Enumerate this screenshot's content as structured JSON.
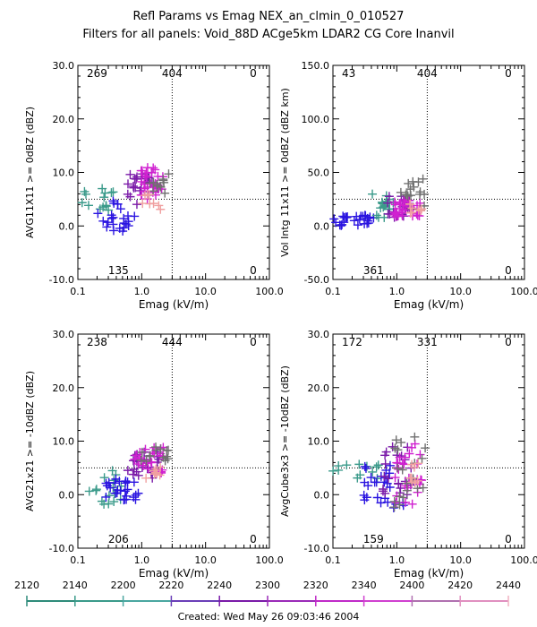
{
  "header": {
    "title": "Refl Params vs Emag    NEX_an_clmin_0_010527",
    "subtitle": "Filters for all panels:  Void_88D ACge5km LDAR2 CG Core Inanvil"
  },
  "footer": {
    "created": "Created: Wed May 26 09:03:46 2004"
  },
  "colors": {
    "teal": "#3a9a8a",
    "blue": "#2a14e0",
    "purple": "#7a1aa8",
    "magenta": "#d020d0",
    "gray": "#707070",
    "pink": "#f0a0a0"
  },
  "colorbar": {
    "labels": [
      "2120",
      "2140",
      "2200",
      "2220",
      "2240",
      "2300",
      "2320",
      "2340",
      "2400",
      "2420",
      "2440"
    ],
    "colors": [
      "#2e8b7a",
      "#3a9a8a",
      "#4aa6a0",
      "#6a3fb8",
      "#7a1aa8",
      "#9a2ab8",
      "#c02ac8",
      "#d040d0",
      "#b070b0",
      "#e090c0",
      "#f0b0c0"
    ]
  },
  "chart_data": [
    {
      "type": "scatter",
      "panel": "top-left",
      "xlabel": "Emag (kV/m)",
      "ylabel": "AVG11X11 >= 0dBZ (dBZ)",
      "xscale": "log",
      "xlim": [
        0.1,
        100.0
      ],
      "ylim": [
        -10.0,
        30.0
      ],
      "xticks": [
        "0.1",
        "1.0",
        "10.0",
        "100.0"
      ],
      "yticks": [
        "-10.0",
        "0.0",
        "10.0",
        "20.0",
        "30.0"
      ],
      "threshold_x": 3.0,
      "threshold_y": 5.0,
      "counts": {
        "ul": "269",
        "uc": "404",
        "ur": "0",
        "lc": "135",
        "lr": "0"
      },
      "clusters": [
        {
          "color": "teal",
          "x": [
            0.1,
            0.4
          ],
          "y": [
            2.0,
            7.0
          ],
          "n": 14
        },
        {
          "color": "blue",
          "x": [
            0.2,
            0.8
          ],
          "y": [
            -1.0,
            5.0
          ],
          "n": 24
        },
        {
          "color": "purple",
          "x": [
            0.6,
            1.8
          ],
          "y": [
            4.0,
            10.0
          ],
          "n": 26
        },
        {
          "color": "magenta",
          "x": [
            0.9,
            2.2
          ],
          "y": [
            5.0,
            11.0
          ],
          "n": 28
        },
        {
          "color": "gray",
          "x": [
            1.2,
            2.8
          ],
          "y": [
            6.0,
            10.0
          ],
          "n": 12
        },
        {
          "color": "pink",
          "x": [
            1.0,
            2.0
          ],
          "y": [
            3.0,
            6.0
          ],
          "n": 8
        }
      ]
    },
    {
      "type": "scatter",
      "panel": "top-right",
      "xlabel": "Emag (kV/m)",
      "ylabel": "Vol Intg 11x11 >= 0dBZ (dBZ km)",
      "xscale": "log",
      "xlim": [
        0.1,
        100.0
      ],
      "ylim": [
        -50.0,
        150.0
      ],
      "xticks": [
        "0.1",
        "1.0",
        "10.0",
        "100.0"
      ],
      "yticks": [
        "-50.0",
        "0.0",
        "50.0",
        "100.0",
        "150.0"
      ],
      "threshold_x": 3.0,
      "threshold_y": 25.0,
      "counts": {
        "ul": "43",
        "uc": "404",
        "ur": "0",
        "lc": "361",
        "lr": "0"
      },
      "clusters": [
        {
          "color": "blue",
          "x": [
            0.1,
            0.5
          ],
          "y": [
            0.0,
            10.0
          ],
          "n": 26
        },
        {
          "color": "teal",
          "x": [
            0.4,
            0.9
          ],
          "y": [
            5.0,
            30.0
          ],
          "n": 16
        },
        {
          "color": "purple",
          "x": [
            0.7,
            1.6
          ],
          "y": [
            8.0,
            28.0
          ],
          "n": 22
        },
        {
          "color": "magenta",
          "x": [
            0.9,
            2.5
          ],
          "y": [
            8.0,
            25.0
          ],
          "n": 30
        },
        {
          "color": "gray",
          "x": [
            1.0,
            2.8
          ],
          "y": [
            15.0,
            45.0
          ],
          "n": 16
        },
        {
          "color": "pink",
          "x": [
            1.5,
            2.5
          ],
          "y": [
            12.0,
            22.0
          ],
          "n": 8
        }
      ]
    },
    {
      "type": "scatter",
      "panel": "bottom-left",
      "xlabel": "Emag (kV/m)",
      "ylabel": "AVG21x21 >= -10dBZ (dBZ)",
      "xscale": "log",
      "xlim": [
        0.1,
        100.0
      ],
      "ylim": [
        -10.0,
        30.0
      ],
      "xticks": [
        "0.1",
        "1.0",
        "10.0",
        "100.0"
      ],
      "yticks": [
        "-10.0",
        "0.0",
        "10.0",
        "20.0",
        "30.0"
      ],
      "threshold_x": 3.0,
      "threshold_y": 5.0,
      "counts": {
        "ul": "238",
        "uc": "444",
        "ur": "0",
        "lc": "206",
        "lr": "0"
      },
      "clusters": [
        {
          "color": "teal",
          "x": [
            0.15,
            0.5
          ],
          "y": [
            -2.0,
            5.0
          ],
          "n": 16
        },
        {
          "color": "blue",
          "x": [
            0.25,
            1.0
          ],
          "y": [
            -1.0,
            3.0
          ],
          "n": 26
        },
        {
          "color": "purple",
          "x": [
            0.6,
            2.0
          ],
          "y": [
            3.0,
            8.0
          ],
          "n": 24
        },
        {
          "color": "magenta",
          "x": [
            0.7,
            2.2
          ],
          "y": [
            4.0,
            9.0
          ],
          "n": 26
        },
        {
          "color": "gray",
          "x": [
            0.9,
            2.8
          ],
          "y": [
            6.0,
            9.0
          ],
          "n": 14
        },
        {
          "color": "pink",
          "x": [
            1.0,
            2.0
          ],
          "y": [
            3.0,
            6.0
          ],
          "n": 8
        }
      ]
    },
    {
      "type": "scatter",
      "panel": "bottom-right",
      "xlabel": "Emag (kV/m)",
      "ylabel": "AvgCube3x3 >= -10dBZ (dBZ)",
      "xscale": "log",
      "xlim": [
        0.1,
        100.0
      ],
      "ylim": [
        -10.0,
        30.0
      ],
      "xticks": [
        "0.1",
        "1.0",
        "10.0",
        "100.0"
      ],
      "yticks": [
        "-10.0",
        "0.0",
        "10.0",
        "20.0",
        "30.0"
      ],
      "threshold_x": 3.0,
      "threshold_y": 5.0,
      "counts": {
        "ul": "172",
        "uc": "331",
        "ur": "0",
        "lc": "159",
        "lr": "0"
      },
      "clusters": [
        {
          "color": "teal",
          "x": [
            0.1,
            0.6
          ],
          "y": [
            3.0,
            6.0
          ],
          "n": 12
        },
        {
          "color": "blue",
          "x": [
            0.3,
            1.5
          ],
          "y": [
            -3.0,
            6.0
          ],
          "n": 26
        },
        {
          "color": "purple",
          "x": [
            0.6,
            2.0
          ],
          "y": [
            0.0,
            10.0
          ],
          "n": 22
        },
        {
          "color": "magenta",
          "x": [
            0.8,
            2.5
          ],
          "y": [
            -2.0,
            10.0
          ],
          "n": 26
        },
        {
          "color": "gray",
          "x": [
            0.9,
            2.8
          ],
          "y": [
            -3.0,
            12.0
          ],
          "n": 20
        },
        {
          "color": "pink",
          "x": [
            1.2,
            2.2
          ],
          "y": [
            2.0,
            6.0
          ],
          "n": 8
        }
      ]
    }
  ]
}
